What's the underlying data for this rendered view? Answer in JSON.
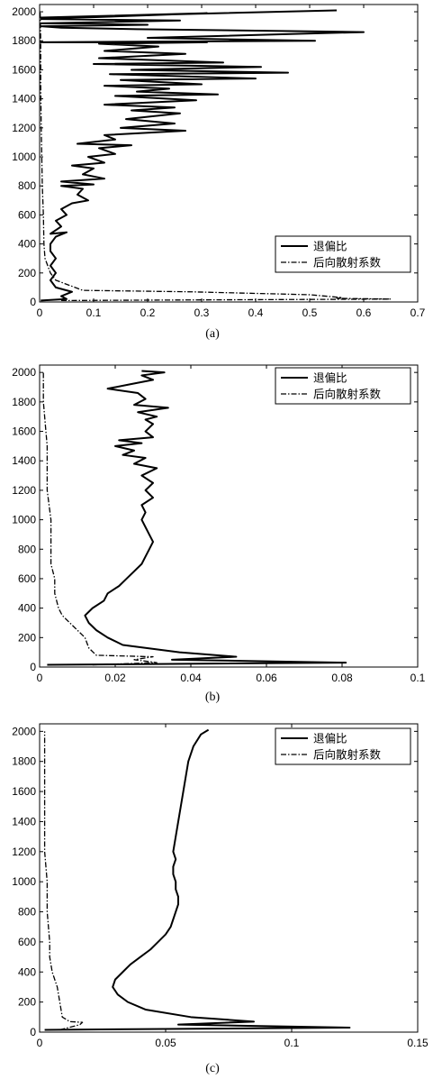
{
  "chart_data": [
    {
      "type": "line",
      "caption": "(a)",
      "xlim": [
        0,
        0.7
      ],
      "ylim": [
        0,
        2050
      ],
      "xticks": [
        0,
        0.1,
        0.2,
        0.3,
        0.4,
        0.5,
        0.6,
        0.7
      ],
      "xtick_labels": [
        "0",
        "0.1",
        "0.2",
        "0.3",
        "0.4",
        "0.5",
        "0.6",
        "0.7"
      ],
      "yticks": [
        0,
        200,
        400,
        600,
        800,
        1000,
        1200,
        1400,
        1600,
        1800,
        2000
      ],
      "ytick_labels": [
        "0",
        "200",
        "400",
        "600",
        "800",
        "1000",
        "1200",
        "1400",
        "1600",
        "1800",
        "2000"
      ],
      "legend_position": "bottom-right",
      "series": [
        {
          "name": "退偏比",
          "style": "solid",
          "points": [
            [
              0.002,
              10
            ],
            [
              0.05,
              20
            ],
            [
              0.04,
              40
            ],
            [
              0.06,
              70
            ],
            [
              0.03,
              100
            ],
            [
              0.02,
              150
            ],
            [
              0.03,
              200
            ],
            [
              0.02,
              250
            ],
            [
              0.03,
              300
            ],
            [
              0.02,
              350
            ],
            [
              0.02,
              400
            ],
            [
              0.03,
              450
            ],
            [
              0.05,
              480
            ],
            [
              0.02,
              470
            ],
            [
              0.04,
              520
            ],
            [
              0.03,
              560
            ],
            [
              0.05,
              600
            ],
            [
              0.04,
              640
            ],
            [
              0.06,
              680
            ],
            [
              0.09,
              700
            ],
            [
              0.07,
              740
            ],
            [
              0.08,
              780
            ],
            [
              0.04,
              800
            ],
            [
              0.1,
              810
            ],
            [
              0.04,
              830
            ],
            [
              0.12,
              850
            ],
            [
              0.08,
              880
            ],
            [
              0.1,
              920
            ],
            [
              0.06,
              940
            ],
            [
              0.12,
              960
            ],
            [
              0.09,
              1000
            ],
            [
              0.14,
              1020
            ],
            [
              0.11,
              1060
            ],
            [
              0.17,
              1080
            ],
            [
              0.07,
              1090
            ],
            [
              0.14,
              1120
            ],
            [
              0.12,
              1150
            ],
            [
              0.27,
              1180
            ],
            [
              0.15,
              1200
            ],
            [
              0.25,
              1230
            ],
            [
              0.16,
              1260
            ],
            [
              0.26,
              1300
            ],
            [
              0.17,
              1320
            ],
            [
              0.25,
              1340
            ],
            [
              0.12,
              1360
            ],
            [
              0.29,
              1390
            ],
            [
              0.14,
              1420
            ],
            [
              0.33,
              1430
            ],
            [
              0.18,
              1450
            ],
            [
              0.24,
              1470
            ],
            [
              0.12,
              1490
            ],
            [
              0.3,
              1500
            ],
            [
              0.15,
              1530
            ],
            [
              0.4,
              1540
            ],
            [
              0.13,
              1570
            ],
            [
              0.46,
              1580
            ],
            [
              0.17,
              1600
            ],
            [
              0.41,
              1620
            ],
            [
              0.1,
              1640
            ],
            [
              0.34,
              1650
            ],
            [
              0.11,
              1680
            ],
            [
              0.27,
              1710
            ],
            [
              0.12,
              1730
            ],
            [
              0.22,
              1760
            ],
            [
              0.11,
              1780
            ],
            [
              0.31,
              1790
            ],
            [
              0.002,
              1790
            ],
            [
              0.51,
              1800
            ],
            [
              0.2,
              1820
            ],
            [
              0.6,
              1860
            ],
            [
              0.18,
              1880
            ],
            [
              0.04,
              1890
            ],
            [
              0.003,
              1900
            ],
            [
              0.2,
              1910
            ],
            [
              0.002,
              1920
            ],
            [
              0.26,
              1940
            ],
            [
              0.003,
              1950
            ],
            [
              0.31,
              1990
            ],
            [
              0.002,
              1960
            ],
            [
              0.55,
              2010
            ]
          ]
        },
        {
          "name": "后向散射系数",
          "style": "dashdot",
          "points": [
            [
              0.04,
              10
            ],
            [
              0.65,
              20
            ],
            [
              0.55,
              25
            ],
            [
              0.56,
              30
            ],
            [
              0.5,
              50
            ],
            [
              0.28,
              70
            ],
            [
              0.08,
              80
            ],
            [
              0.03,
              150
            ],
            [
              0.02,
              200
            ],
            [
              0.01,
              300
            ],
            [
              0.008,
              400
            ],
            [
              0.007,
              600
            ],
            [
              0.005,
              800
            ],
            [
              0.004,
              1000
            ],
            [
              0.003,
              1200
            ],
            [
              0.002,
              1500
            ],
            [
              0.002,
              1800
            ],
            [
              0.001,
              2000
            ]
          ]
        }
      ]
    },
    {
      "type": "line",
      "caption": "(b)",
      "xlim": [
        0,
        0.1
      ],
      "ylim": [
        0,
        2050
      ],
      "xticks": [
        0,
        0.02,
        0.04,
        0.06,
        0.08,
        0.1
      ],
      "xtick_labels": [
        "0",
        "0.02",
        "0.04",
        "0.06",
        "0.08",
        "0.1"
      ],
      "yticks": [
        0,
        200,
        400,
        600,
        800,
        1000,
        1200,
        1400,
        1600,
        1800,
        2000
      ],
      "ytick_labels": [
        "0",
        "200",
        "400",
        "600",
        "800",
        "1000",
        "1200",
        "1400",
        "1600",
        "1800",
        "2000"
      ],
      "legend_position": "top-right",
      "series": [
        {
          "name": "退偏比",
          "style": "solid",
          "points": [
            [
              0.002,
              15
            ],
            [
              0.081,
              30
            ],
            [
              0.035,
              50
            ],
            [
              0.052,
              70
            ],
            [
              0.037,
              100
            ],
            [
              0.022,
              150
            ],
            [
              0.018,
              200
            ],
            [
              0.015,
              250
            ],
            [
              0.013,
              300
            ],
            [
              0.012,
              350
            ],
            [
              0.014,
              400
            ],
            [
              0.017,
              450
            ],
            [
              0.018,
              500
            ],
            [
              0.021,
              550
            ],
            [
              0.023,
              600
            ],
            [
              0.025,
              650
            ],
            [
              0.027,
              700
            ],
            [
              0.028,
              750
            ],
            [
              0.029,
              800
            ],
            [
              0.03,
              850
            ],
            [
              0.029,
              900
            ],
            [
              0.028,
              950
            ],
            [
              0.027,
              1000
            ],
            [
              0.028,
              1050
            ],
            [
              0.027,
              1100
            ],
            [
              0.03,
              1150
            ],
            [
              0.028,
              1200
            ],
            [
              0.03,
              1250
            ],
            [
              0.027,
              1300
            ],
            [
              0.031,
              1350
            ],
            [
              0.025,
              1380
            ],
            [
              0.028,
              1420
            ],
            [
              0.022,
              1440
            ],
            [
              0.025,
              1470
            ],
            [
              0.02,
              1500
            ],
            [
              0.027,
              1520
            ],
            [
              0.021,
              1540
            ],
            [
              0.03,
              1560
            ],
            [
              0.028,
              1600
            ],
            [
              0.03,
              1650
            ],
            [
              0.028,
              1680
            ],
            [
              0.031,
              1700
            ],
            [
              0.026,
              1730
            ],
            [
              0.034,
              1760
            ],
            [
              0.025,
              1780
            ],
            [
              0.028,
              1820
            ],
            [
              0.026,
              1860
            ],
            [
              0.018,
              1890
            ],
            [
              0.024,
              1920
            ],
            [
              0.03,
              1950
            ],
            [
              0.027,
              1980
            ],
            [
              0.033,
              2000
            ],
            [
              0.027,
              2010
            ]
          ]
        },
        {
          "name": "后向散射系数",
          "style": "dashdot",
          "points": [
            [
              0.014,
              15
            ],
            [
              0.031,
              30
            ],
            [
              0.025,
              50
            ],
            [
              0.03,
              70
            ],
            [
              0.015,
              80
            ],
            [
              0.013,
              130
            ],
            [
              0.012,
              200
            ],
            [
              0.01,
              250
            ],
            [
              0.008,
              300
            ],
            [
              0.006,
              350
            ],
            [
              0.005,
              400
            ],
            [
              0.004,
              500
            ],
            [
              0.004,
              600
            ],
            [
              0.003,
              700
            ],
            [
              0.003,
              800
            ],
            [
              0.003,
              1000
            ],
            [
              0.002,
              1200
            ],
            [
              0.002,
              1500
            ],
            [
              0.001,
              1800
            ],
            [
              0.001,
              2000
            ]
          ]
        }
      ]
    },
    {
      "type": "line",
      "caption": "(c)",
      "xlim": [
        0,
        0.15
      ],
      "ylim": [
        0,
        2050
      ],
      "xticks": [
        0,
        0.05,
        0.1,
        0.15
      ],
      "xtick_labels": [
        "0",
        "0.05",
        "0.1",
        "0.15"
      ],
      "yticks": [
        0,
        200,
        400,
        600,
        800,
        1000,
        1200,
        1400,
        1600,
        1800,
        2000
      ],
      "ytick_labels": [
        "0",
        "200",
        "400",
        "600",
        "800",
        "1000",
        "1200",
        "1400",
        "1600",
        "1800",
        "2000"
      ],
      "legend_position": "top-right",
      "series": [
        {
          "name": "退偏比",
          "style": "solid",
          "points": [
            [
              0.002,
              15
            ],
            [
              0.123,
              30
            ],
            [
              0.055,
              50
            ],
            [
              0.085,
              70
            ],
            [
              0.06,
              100
            ],
            [
              0.042,
              150
            ],
            [
              0.035,
              200
            ],
            [
              0.031,
              250
            ],
            [
              0.029,
              300
            ],
            [
              0.03,
              350
            ],
            [
              0.033,
              400
            ],
            [
              0.036,
              450
            ],
            [
              0.04,
              500
            ],
            [
              0.044,
              550
            ],
            [
              0.047,
              600
            ],
            [
              0.05,
              650
            ],
            [
              0.052,
              700
            ],
            [
              0.053,
              750
            ],
            [
              0.054,
              800
            ],
            [
              0.055,
              850
            ],
            [
              0.055,
              900
            ],
            [
              0.054,
              950
            ],
            [
              0.054,
              1000
            ],
            [
              0.053,
              1050
            ],
            [
              0.053,
              1100
            ],
            [
              0.054,
              1150
            ],
            [
              0.053,
              1200
            ],
            [
              0.054,
              1300
            ],
            [
              0.055,
              1400
            ],
            [
              0.056,
              1500
            ],
            [
              0.057,
              1600
            ],
            [
              0.058,
              1700
            ],
            [
              0.059,
              1800
            ],
            [
              0.061,
              1900
            ],
            [
              0.064,
              1980
            ],
            [
              0.067,
              2010
            ]
          ]
        },
        {
          "name": "后向散射系数",
          "style": "dashdot",
          "points": [
            [
              0.008,
              15
            ],
            [
              0.016,
              50
            ],
            [
              0.017,
              65
            ],
            [
              0.012,
              70
            ],
            [
              0.009,
              100
            ],
            [
              0.008,
              200
            ],
            [
              0.007,
              300
            ],
            [
              0.005,
              400
            ],
            [
              0.004,
              500
            ],
            [
              0.004,
              600
            ],
            [
              0.003,
              800
            ],
            [
              0.003,
              1000
            ],
            [
              0.002,
              1200
            ],
            [
              0.002,
              1500
            ],
            [
              0.002,
              1800
            ],
            [
              0.002,
              2000
            ]
          ]
        }
      ]
    }
  ]
}
